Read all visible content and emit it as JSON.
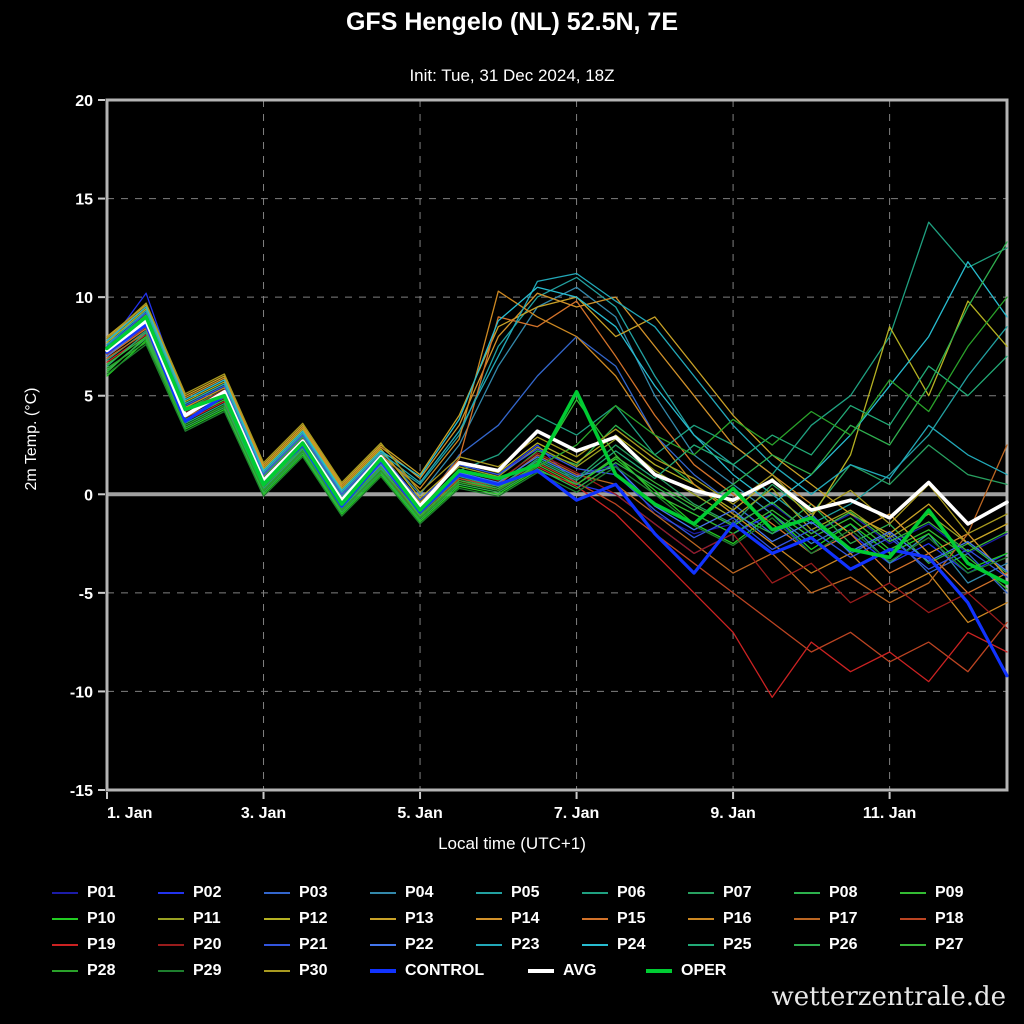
{
  "page": {
    "title": "GFS Hengelo (NL) 52.5N, 7E",
    "subtitle": "Init: Tue, 31 Dec 2024, 18Z",
    "watermark": "wetterzentrale.de"
  },
  "chart_data": {
    "type": "line",
    "title": "GFS Hengelo (NL) 52.5N, 7E",
    "subtitle": "Init: Tue, 31 Dec 2024, 18Z",
    "xlabel": "Local time (UTC+1)",
    "ylabel": "2m Temp. (°C)",
    "ylim": [
      -15,
      20
    ],
    "xlim_days": [
      1,
      12.5
    ],
    "grid": true,
    "legend_position": "bottom",
    "y_tick_values": [
      20,
      15,
      10,
      5,
      0,
      -5,
      -10,
      -15
    ],
    "y_tick_labels": [
      "20",
      "15",
      "10",
      "5",
      "0",
      "-5",
      "-10",
      "-15"
    ],
    "x_tick_values": [
      1,
      3,
      5,
      7,
      9,
      11
    ],
    "x_tick_labels": [
      "1. Jan",
      "3. Jan",
      "5. Jan",
      "7. Jan",
      "9. Jan",
      "11. Jan"
    ],
    "zero_line": 0,
    "x_days": [
      1,
      1.5,
      2,
      2.5,
      3,
      3.5,
      4,
      4.5,
      5,
      5.5,
      6,
      6.5,
      7,
      7.5,
      8,
      8.5,
      9,
      9.5,
      10,
      10.5,
      11,
      11.5,
      12,
      12.5
    ],
    "series": [
      {
        "name": "P01",
        "color": "#1c1ca8",
        "width": 1.3,
        "values": [
          7.0,
          8.5,
          4.0,
          5.0,
          0.5,
          2.5,
          -0.5,
          1.5,
          -1.0,
          1.0,
          0.5,
          2.0,
          1.0,
          1.5,
          -1.0,
          -2.0,
          -1.5,
          -0.5,
          -2.0,
          -1.0,
          -2.5,
          -1.5,
          -3.0,
          -2.0
        ]
      },
      {
        "name": "P02",
        "color": "#2233ee",
        "width": 1.3,
        "values": [
          7.5,
          10.2,
          4.5,
          5.5,
          1.0,
          3.0,
          0.0,
          2.0,
          -0.5,
          1.5,
          1.0,
          2.5,
          0.5,
          0.0,
          -1.5,
          -3.0,
          -2.0,
          -1.0,
          -3.0,
          -2.0,
          -3.5,
          -2.5,
          -4.0,
          -3.0
        ]
      },
      {
        "name": "P03",
        "color": "#3366cc",
        "width": 1.3,
        "values": [
          7.2,
          8.8,
          4.2,
          5.2,
          0.8,
          2.8,
          -0.2,
          1.8,
          -0.8,
          2.0,
          3.5,
          6.0,
          8.0,
          6.5,
          3.0,
          1.0,
          -0.5,
          -2.0,
          -1.0,
          -3.0,
          -2.0,
          -4.0,
          -3.0,
          -5.0
        ]
      },
      {
        "name": "P04",
        "color": "#3388aa",
        "width": 1.3,
        "values": [
          7.8,
          9.2,
          4.8,
          5.8,
          1.2,
          3.2,
          0.2,
          2.2,
          0.0,
          2.5,
          6.5,
          9.5,
          10.5,
          9.0,
          5.0,
          2.0,
          0.5,
          -1.0,
          -2.5,
          -1.5,
          -3.5,
          -2.0,
          -4.5,
          -3.5
        ]
      },
      {
        "name": "P05",
        "color": "#22a0a0",
        "width": 1.3,
        "values": [
          7.6,
          9.0,
          4.4,
          5.4,
          0.9,
          2.9,
          -0.1,
          1.9,
          0.5,
          3.0,
          7.5,
          10.0,
          11.0,
          9.5,
          6.0,
          3.0,
          1.5,
          0.0,
          -1.5,
          -0.5,
          1.0,
          3.0,
          6.0,
          8.5
        ]
      },
      {
        "name": "P06",
        "color": "#1fa080",
        "width": 1.3,
        "values": [
          6.8,
          8.3,
          3.8,
          4.8,
          0.4,
          2.4,
          -0.6,
          1.4,
          -0.6,
          1.2,
          2.0,
          4.0,
          3.0,
          4.5,
          2.0,
          3.5,
          2.5,
          1.0,
          3.5,
          5.0,
          8.0,
          13.8,
          11.5,
          12.5
        ]
      },
      {
        "name": "P07",
        "color": "#28a060",
        "width": 1.3,
        "values": [
          7.1,
          8.6,
          4.1,
          5.1,
          0.6,
          2.6,
          -0.4,
          1.6,
          -0.9,
          0.8,
          0.3,
          1.8,
          0.8,
          2.5,
          1.0,
          -0.5,
          -1.5,
          0.5,
          -1.0,
          1.5,
          0.5,
          2.5,
          1.0,
          0.5
        ]
      },
      {
        "name": "P08",
        "color": "#2cb04c",
        "width": 1.3,
        "values": [
          7.3,
          8.9,
          4.3,
          5.3,
          0.9,
          2.9,
          -0.3,
          1.7,
          -0.7,
          1.1,
          0.6,
          2.2,
          1.5,
          3.5,
          2.0,
          0.5,
          -1.0,
          -2.0,
          -0.5,
          -2.5,
          -1.5,
          -3.5,
          -2.5,
          -4.0
        ]
      },
      {
        "name": "P09",
        "color": "#33bb33",
        "width": 1.3,
        "values": [
          6.2,
          8.0,
          3.5,
          4.5,
          0.2,
          2.2,
          -0.8,
          1.2,
          -1.2,
          0.6,
          0.2,
          1.5,
          4.8,
          2.0,
          0.0,
          -1.0,
          -2.0,
          -0.8,
          -2.2,
          -1.2,
          -2.8,
          -1.8,
          -3.2,
          -4.8
        ]
      },
      {
        "name": "P10",
        "color": "#22cc22",
        "width": 1.3,
        "values": [
          6.0,
          7.8,
          3.3,
          4.3,
          0.0,
          2.0,
          -1.0,
          1.0,
          -1.4,
          0.4,
          0.0,
          1.2,
          0.5,
          1.8,
          0.2,
          -1.5,
          -2.5,
          -1.0,
          -2.8,
          -1.5,
          -3.0,
          -2.0,
          -3.8,
          -3.0
        ]
      },
      {
        "name": "P11",
        "color": "#99a122",
        "width": 1.3,
        "values": [
          7.4,
          9.1,
          4.6,
          5.6,
          1.1,
          3.1,
          0.1,
          2.1,
          -0.4,
          1.4,
          0.9,
          2.4,
          1.4,
          2.8,
          1.2,
          0.0,
          -1.2,
          0.3,
          -1.8,
          -0.8,
          -2.2,
          -1.0,
          -2.5,
          -1.5
        ]
      },
      {
        "name": "P12",
        "color": "#b5b122",
        "width": 1.3,
        "values": [
          7.7,
          9.4,
          4.7,
          5.7,
          1.3,
          3.3,
          0.3,
          2.3,
          -0.2,
          1.6,
          1.1,
          2.6,
          1.6,
          3.0,
          1.5,
          0.5,
          -0.8,
          0.8,
          -1.2,
          2.0,
          8.5,
          5.0,
          9.8,
          7.5
        ]
      },
      {
        "name": "P13",
        "color": "#c9a227",
        "width": 1.3,
        "values": [
          8.0,
          9.6,
          5.0,
          6.0,
          1.5,
          3.5,
          0.5,
          2.5,
          1.0,
          4.0,
          8.5,
          9.5,
          10.0,
          8.0,
          9.0,
          6.5,
          4.0,
          2.0,
          0.5,
          -1.0,
          -2.0,
          -0.5,
          -2.5,
          -1.5
        ]
      },
      {
        "name": "P14",
        "color": "#d2922a",
        "width": 1.3,
        "values": [
          7.9,
          9.5,
          4.9,
          5.9,
          1.4,
          3.4,
          0.4,
          2.4,
          0.8,
          3.5,
          8.0,
          10.2,
          9.5,
          10.0,
          7.5,
          5.0,
          2.5,
          1.0,
          -0.5,
          -2.0,
          -1.0,
          -3.0,
          -2.0,
          -4.2
        ]
      },
      {
        "name": "P15",
        "color": "#d2722a",
        "width": 1.3,
        "values": [
          7.0,
          8.4,
          4.0,
          5.2,
          0.7,
          2.7,
          -0.3,
          1.7,
          -0.5,
          1.8,
          9.0,
          8.5,
          9.8,
          7.0,
          4.0,
          1.5,
          0.0,
          -1.5,
          -3.0,
          -2.0,
          -4.0,
          -3.0,
          -5.0,
          -4.0
        ]
      },
      {
        "name": "P16",
        "color": "#cc8822",
        "width": 1.3,
        "values": [
          7.2,
          8.7,
          4.4,
          5.4,
          1.0,
          3.0,
          0.0,
          2.0,
          0.3,
          2.8,
          10.3,
          9.0,
          8.0,
          6.0,
          3.0,
          0.5,
          -1.0,
          -2.5,
          -4.0,
          -3.0,
          -5.0,
          -4.0,
          -6.5,
          -5.5
        ]
      },
      {
        "name": "P17",
        "color": "#bb6622",
        "width": 1.3,
        "values": [
          6.9,
          8.2,
          3.9,
          4.9,
          0.5,
          2.5,
          -0.5,
          1.5,
          -0.8,
          1.0,
          0.5,
          2.0,
          1.0,
          0.5,
          -1.0,
          -2.5,
          -4.0,
          -3.0,
          -5.0,
          -4.2,
          -5.5,
          -4.5,
          -2.0,
          2.5
        ]
      },
      {
        "name": "P18",
        "color": "#bb4422",
        "width": 1.3,
        "values": [
          7.1,
          8.5,
          4.1,
          5.1,
          0.6,
          2.6,
          -0.4,
          1.6,
          -1.0,
          0.8,
          0.4,
          1.6,
          0.6,
          -0.5,
          -2.0,
          -3.5,
          -5.0,
          -6.5,
          -8.0,
          -7.0,
          -8.5,
          -7.5,
          -9.0,
          -6.5
        ]
      },
      {
        "name": "P19",
        "color": "#cc2222",
        "width": 1.3,
        "values": [
          6.7,
          8.1,
          3.7,
          4.7,
          0.3,
          2.3,
          -0.7,
          1.3,
          -1.1,
          0.7,
          0.2,
          1.4,
          0.4,
          -1.0,
          -3.0,
          -5.0,
          -7.0,
          -10.3,
          -7.5,
          -9.0,
          -8.0,
          -9.5,
          -7.0,
          -8.0
        ]
      },
      {
        "name": "P20",
        "color": "#991c1c",
        "width": 1.3,
        "values": [
          7.3,
          8.8,
          4.2,
          5.3,
          0.8,
          2.8,
          -0.2,
          1.8,
          -0.6,
          1.2,
          0.7,
          2.1,
          1.1,
          0.0,
          -1.5,
          -3.0,
          -2.0,
          -4.5,
          -3.5,
          -5.5,
          -4.5,
          -6.0,
          -5.0,
          -6.8
        ]
      },
      {
        "name": "P21",
        "color": "#3355dd",
        "width": 1.3,
        "values": [
          7.5,
          9.2,
          4.5,
          5.5,
          1.0,
          3.0,
          0.0,
          2.0,
          -0.3,
          1.5,
          1.0,
          2.3,
          1.3,
          1.0,
          -0.8,
          -2.2,
          -1.2,
          -2.8,
          -1.8,
          -3.2,
          -2.2,
          -3.8,
          -2.8,
          -4.2
        ]
      },
      {
        "name": "P22",
        "color": "#4477ee",
        "width": 1.3,
        "values": [
          7.0,
          8.6,
          4.0,
          5.0,
          0.5,
          2.5,
          -0.5,
          1.5,
          -0.9,
          1.1,
          0.6,
          1.9,
          0.9,
          1.4,
          -0.6,
          -1.8,
          -0.8,
          -2.4,
          -1.4,
          -2.9,
          -1.9,
          -3.4,
          -2.4,
          -3.9
        ]
      },
      {
        "name": "P23",
        "color": "#22a8b8",
        "width": 1.3,
        "values": [
          7.6,
          9.3,
          4.6,
          5.6,
          1.1,
          3.1,
          0.1,
          2.1,
          0.6,
          3.2,
          7.0,
          10.8,
          11.2,
          9.8,
          8.5,
          6.0,
          3.5,
          1.5,
          0.0,
          1.5,
          0.8,
          3.5,
          2.0,
          1.0
        ]
      },
      {
        "name": "P24",
        "color": "#28bcd0",
        "width": 1.3,
        "values": [
          7.8,
          9.5,
          4.8,
          5.8,
          1.2,
          3.2,
          0.2,
          2.2,
          0.9,
          3.8,
          8.8,
          10.5,
          10.0,
          8.5,
          5.5,
          3.0,
          1.0,
          -0.5,
          1.0,
          3.0,
          5.5,
          8.0,
          11.8,
          9.0
        ]
      },
      {
        "name": "P25",
        "color": "#22aa77",
        "width": 1.3,
        "values": [
          6.5,
          8.2,
          3.6,
          4.6,
          0.3,
          2.3,
          -0.7,
          1.3,
          -1.0,
          0.9,
          0.4,
          1.7,
          0.7,
          2.2,
          0.8,
          2.5,
          1.5,
          3.0,
          2.0,
          4.5,
          3.5,
          6.5,
          5.0,
          7.0
        ]
      },
      {
        "name": "P26",
        "color": "#2fae4e",
        "width": 1.3,
        "values": [
          6.3,
          7.9,
          3.4,
          4.4,
          0.1,
          2.1,
          -0.9,
          1.1,
          -1.3,
          0.5,
          0.1,
          1.3,
          0.3,
          1.6,
          0.4,
          -0.8,
          0.5,
          2.0,
          1.0,
          3.5,
          2.5,
          5.5,
          9.5,
          12.8
        ]
      },
      {
        "name": "P27",
        "color": "#39b539",
        "width": 1.3,
        "values": [
          6.6,
          8.0,
          3.8,
          4.8,
          0.4,
          2.4,
          -0.6,
          1.4,
          -1.1,
          0.7,
          0.3,
          1.5,
          0.5,
          1.9,
          0.6,
          -0.6,
          -1.6,
          -0.4,
          -2.0,
          -0.9,
          -2.4,
          -1.4,
          -2.9,
          -1.9
        ]
      },
      {
        "name": "P28",
        "color": "#2aa22a",
        "width": 1.3,
        "values": [
          6.4,
          7.7,
          3.5,
          4.5,
          0.2,
          2.2,
          -0.8,
          1.2,
          -1.2,
          0.6,
          0.2,
          1.4,
          2.5,
          4.5,
          3.0,
          2.0,
          3.8,
          2.5,
          4.2,
          3.0,
          5.8,
          4.2,
          7.5,
          10.0
        ]
      },
      {
        "name": "P29",
        "color": "#1e7e2e",
        "width": 1.3,
        "values": [
          6.1,
          7.6,
          3.2,
          4.2,
          -0.1,
          1.9,
          -1.1,
          0.9,
          -1.5,
          0.3,
          -0.1,
          1.1,
          0.1,
          1.4,
          0.0,
          -1.6,
          -2.6,
          -1.2,
          -3.0,
          -1.8,
          -3.4,
          -2.2,
          -4.0,
          -3.2
        ]
      },
      {
        "name": "P30",
        "color": "#a89a20",
        "width": 1.3,
        "values": [
          7.9,
          9.7,
          5.1,
          6.1,
          1.6,
          3.6,
          0.6,
          2.6,
          0.1,
          1.9,
          1.4,
          2.9,
          1.9,
          3.3,
          1.8,
          0.8,
          -0.5,
          1.0,
          -1.0,
          0.2,
          -1.5,
          0.5,
          -2.0,
          -1.0
        ]
      },
      {
        "name": "CONTROL",
        "color": "#1133ff",
        "width": 3.2,
        "values": [
          7.2,
          8.6,
          3.7,
          5.0,
          0.6,
          2.5,
          -0.6,
          1.7,
          -0.9,
          1.0,
          0.5,
          1.2,
          -0.3,
          0.5,
          -2.0,
          -4.0,
          -1.5,
          -3.0,
          -2.2,
          -3.8,
          -2.8,
          -3.2,
          -5.5,
          -9.2
        ]
      },
      {
        "name": "AVG",
        "color": "#ffffff",
        "width": 3.6,
        "values": [
          7.3,
          8.8,
          4.0,
          5.2,
          0.7,
          2.7,
          -0.3,
          1.9,
          -0.6,
          1.6,
          1.2,
          3.2,
          2.2,
          2.9,
          1.0,
          0.2,
          -0.3,
          0.7,
          -0.8,
          -0.3,
          -1.2,
          0.6,
          -1.5,
          -0.4
        ]
      },
      {
        "name": "OPER",
        "color": "#00cc33",
        "width": 3.6,
        "values": [
          7.4,
          9.0,
          4.3,
          5.0,
          0.5,
          2.6,
          -0.5,
          1.8,
          -0.8,
          1.2,
          0.8,
          1.5,
          5.2,
          1.0,
          -0.5,
          -1.5,
          0.3,
          -1.8,
          -1.2,
          -2.8,
          -3.2,
          -0.8,
          -3.5,
          -4.5
        ]
      }
    ]
  }
}
